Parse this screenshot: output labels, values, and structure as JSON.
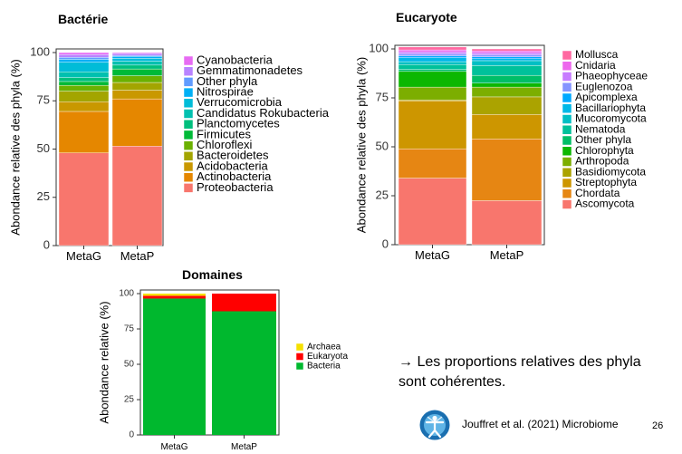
{
  "conclusion": "→ Les proportions relatives des phyla sont cohérentes.",
  "citation": "Jouffret et al. (2021) Microbiome",
  "page_number": "26",
  "logo_icon": "microbiome-journal-logo-icon",
  "chart_data": [
    {
      "type": "bar",
      "stacked": true,
      "title": "Bactérie",
      "ylabel": "Abondance relative des phyla (%)",
      "xlabel": "",
      "ylim": [
        0,
        100
      ],
      "yticks": [
        0,
        25,
        50,
        75,
        100
      ],
      "categories": [
        "MetaG",
        "MetaP"
      ],
      "grid": false,
      "legend_position": "right",
      "series": [
        {
          "name": "Proteobacteria",
          "color": "#F8766D",
          "values": [
            48,
            51.5
          ]
        },
        {
          "name": "Actinobacteria",
          "color": "#E58700",
          "values": [
            21.5,
            24.5
          ]
        },
        {
          "name": "Acidobacteria",
          "color": "#C99800",
          "values": [
            5,
            4.5
          ]
        },
        {
          "name": "Bacteroidetes",
          "color": "#A3A500",
          "values": [
            5.5,
            4
          ]
        },
        {
          "name": "Chloroflexi",
          "color": "#6BB100",
          "values": [
            3,
            3.5
          ]
        },
        {
          "name": "Firmicutes",
          "color": "#00BA38",
          "values": [
            2,
            3.5
          ]
        },
        {
          "name": "Planctomycetes",
          "color": "#00BF7D",
          "values": [
            2,
            2
          ]
        },
        {
          "name": "Candidatus Rokubacteria",
          "color": "#00C0AF",
          "values": [
            3,
            2
          ]
        },
        {
          "name": "Verrucomicrobia",
          "color": "#00BCD8",
          "values": [
            5,
            1.5
          ]
        },
        {
          "name": "Nitrospirae",
          "color": "#00B0F6",
          "values": [
            1.5,
            1
          ]
        },
        {
          "name": "Other phyla",
          "color": "#619CFF",
          "values": [
            1,
            0.5
          ]
        },
        {
          "name": "Gemmatimonadetes",
          "color": "#B983FF",
          "values": [
            1.5,
            1
          ]
        },
        {
          "name": "Cyanobacteria",
          "color": "#E76BF3",
          "values": [
            1,
            0.5
          ]
        }
      ]
    },
    {
      "type": "bar",
      "stacked": true,
      "title": "Eucaryote",
      "ylabel": "Abondance relative des phyla (%)",
      "xlabel": "",
      "ylim": [
        0,
        100
      ],
      "yticks": [
        0,
        25,
        50,
        75,
        100
      ],
      "categories": [
        "MetaG",
        "MetaP"
      ],
      "grid": false,
      "legend_position": "right",
      "series": [
        {
          "name": "Ascomycota",
          "color": "#F8766D",
          "values": [
            34,
            22.5
          ]
        },
        {
          "name": "Chordata",
          "color": "#E68613",
          "values": [
            15,
            31.5
          ]
        },
        {
          "name": "Streptophyta",
          "color": "#CD9600",
          "values": [
            24.5,
            12.5
          ]
        },
        {
          "name": "Basidiomycota",
          "color": "#ABA300",
          "values": [
            0.5,
            9
          ]
        },
        {
          "name": "Arthropoda",
          "color": "#7CAE00",
          "values": [
            6.5,
            5
          ]
        },
        {
          "name": "Chlorophyta",
          "color": "#0CB702",
          "values": [
            8,
            2
          ]
        },
        {
          "name": "Other phyla",
          "color": "#00BE67",
          "values": [
            1,
            4
          ]
        },
        {
          "name": "Nematoda",
          "color": "#00C19A",
          "values": [
            2.5,
            5
          ]
        },
        {
          "name": "Mucoromycota",
          "color": "#00BFC4",
          "values": [
            1.5,
            2.5
          ]
        },
        {
          "name": "Bacillariophyta",
          "color": "#00B8E7",
          "values": [
            2,
            1
          ]
        },
        {
          "name": "Apicomplexa",
          "color": "#00A9FF",
          "values": [
            1,
            1
          ]
        },
        {
          "name": "Euglenozoa",
          "color": "#8494FF",
          "values": [
            1,
            1
          ]
        },
        {
          "name": "Phaeophyceae",
          "color": "#C77CFF",
          "values": [
            1,
            1
          ]
        },
        {
          "name": "Cnidaria",
          "color": "#ED68ED",
          "values": [
            1,
            1
          ]
        },
        {
          "name": "Mollusca",
          "color": "#FF68A1",
          "values": [
            1.5,
            1
          ]
        }
      ]
    },
    {
      "type": "bar",
      "stacked": true,
      "title": "Domaines",
      "ylabel": "Abondance relative (%)",
      "xlabel": "",
      "ylim": [
        0,
        100
      ],
      "yticks": [
        0,
        25,
        50,
        75,
        100
      ],
      "categories": [
        "MetaG",
        "MetaP"
      ],
      "grid": false,
      "legend_position": "right",
      "series": [
        {
          "name": "Bacteria",
          "color": "#00B82E",
          "values": [
            96.5,
            87.5
          ]
        },
        {
          "name": "Eukaryota",
          "color": "#FF0000",
          "values": [
            2,
            12.5
          ]
        },
        {
          "name": "Archaea",
          "color": "#F5E000",
          "values": [
            1.5,
            0
          ]
        }
      ]
    }
  ]
}
